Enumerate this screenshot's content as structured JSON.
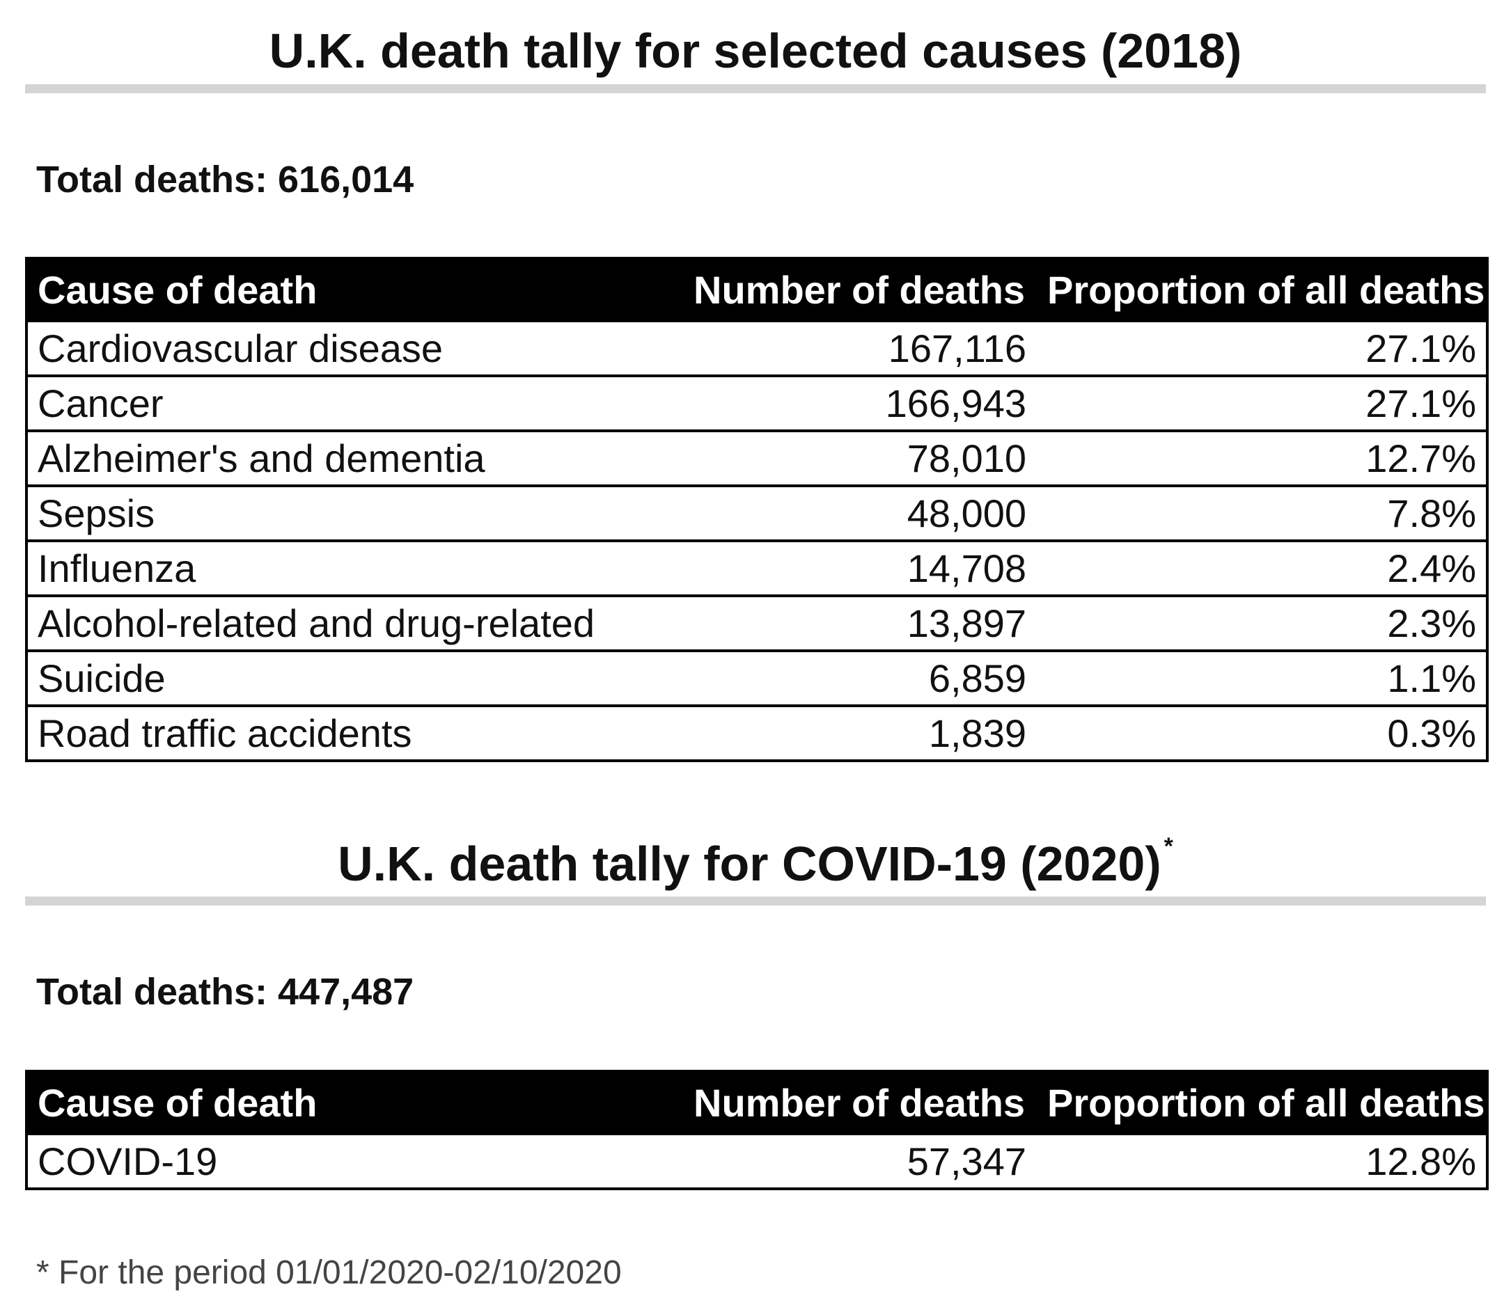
{
  "section_2018": {
    "title": "U.K. death tally for selected causes (2018)",
    "total": "Total deaths: 616,014",
    "headers": [
      "Cause of death",
      "Number of deaths",
      "Proportion of all deaths"
    ],
    "rows": [
      {
        "cause": "Cardiovascular disease",
        "deaths": "167,116",
        "proportion": "27.1%"
      },
      {
        "cause": "Cancer",
        "deaths": "166,943",
        "proportion": "27.1%"
      },
      {
        "cause": "Alzheimer's and dementia",
        "deaths": "78,010",
        "proportion": "12.7%"
      },
      {
        "cause": "Sepsis",
        "deaths": "48,000",
        "proportion": "7.8%"
      },
      {
        "cause": "Influenza",
        "deaths": "14,708",
        "proportion": "2.4%"
      },
      {
        "cause": "Alcohol-related and drug-related",
        "deaths": "13,897",
        "proportion": "2.3%"
      },
      {
        "cause": "Suicide",
        "deaths": "6,859",
        "proportion": "1.1%"
      },
      {
        "cause": "Road traffic accidents",
        "deaths": "1,839",
        "proportion": "0.3%"
      }
    ]
  },
  "section_2020": {
    "title": "U.K. death tally for COVID-19 (2020)",
    "title_marker": "*",
    "total": "Total deaths: 447,487",
    "headers": [
      "Cause of death",
      "Number of deaths",
      "Proportion of all deaths"
    ],
    "rows": [
      {
        "cause": "COVID-19",
        "deaths": "57,347",
        "proportion": "12.8%"
      }
    ]
  },
  "footnote": "* For the period 01/01/2020-02/10/2020"
}
